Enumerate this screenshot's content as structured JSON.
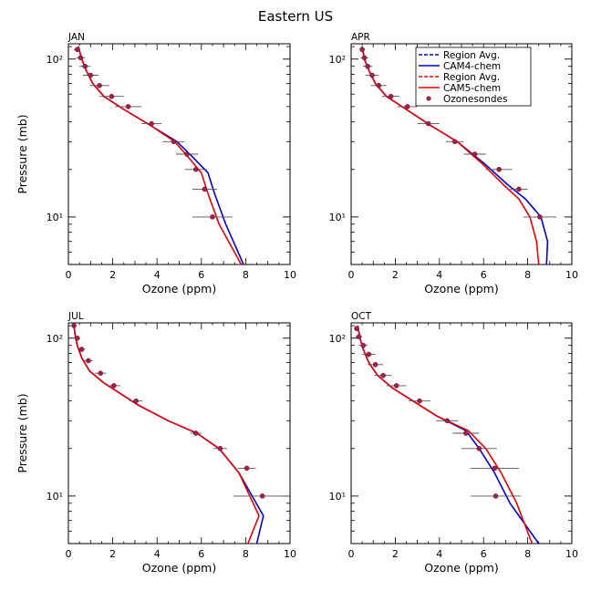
{
  "figure_title": "Eastern US",
  "colors": {
    "cam4": "#0000dd",
    "cam5": "#ee0000",
    "sonde": "#a0204a",
    "errorbar": "#555555",
    "axis": "#000000"
  },
  "legend": {
    "items": [
      {
        "label": "Region Avg.",
        "style": "dashed",
        "color": "#0000dd"
      },
      {
        "label": "CAM4-chem",
        "style": "solid",
        "color": "#0000dd"
      },
      {
        "label": "Region Avg.",
        "style": "dashed",
        "color": "#ee0000"
      },
      {
        "label": "CAM5-chem",
        "style": "solid",
        "color": "#ee0000"
      },
      {
        "label": "Ozonesondes",
        "style": "marker",
        "color": "#a0204a"
      }
    ]
  },
  "chart_data": [
    {
      "type": "line",
      "panel": "JAN",
      "xlabel": "Ozone (ppm)",
      "ylabel": "Pressure (mb)",
      "xlim": [
        0,
        10
      ],
      "ylim": [
        125,
        5
      ],
      "yscale": "log",
      "xticks": [
        0,
        2,
        4,
        6,
        8,
        10
      ],
      "yticks": [
        {
          "value": 10,
          "label": "10¹"
        },
        {
          "value": 100,
          "label": "10²"
        }
      ],
      "series": [
        {
          "name": "CAM4-chem",
          "color": "#0000dd",
          "x": [
            0.45,
            0.6,
            0.8,
            1.1,
            1.6,
            2.5,
            3.7,
            4.9,
            5.6,
            6.3,
            6.6,
            7.1,
            7.9
          ],
          "y": [
            120,
            100,
            85,
            70,
            58,
            48,
            38,
            30,
            24,
            19,
            14,
            9,
            5
          ]
        },
        {
          "name": "CAM5-chem",
          "color": "#ee0000",
          "x": [
            0.45,
            0.6,
            0.8,
            1.1,
            1.6,
            2.5,
            3.7,
            4.8,
            5.4,
            6.0,
            6.3,
            6.8,
            7.8
          ],
          "y": [
            120,
            100,
            85,
            70,
            58,
            48,
            38,
            30,
            24,
            19,
            14,
            9,
            5
          ]
        },
        {
          "name": "Ozonesondes",
          "type": "scatter",
          "color": "#a0204a",
          "x": [
            0.4,
            0.55,
            0.75,
            1.0,
            1.4,
            1.95,
            2.7,
            3.75,
            4.75,
            5.35,
            5.75,
            6.15,
            6.5
          ],
          "y": [
            115,
            102,
            90,
            79,
            68,
            58,
            50,
            39,
            30,
            25,
            20,
            15,
            10
          ],
          "xerr": [
            0.15,
            0.2,
            0.25,
            0.35,
            0.45,
            0.55,
            0.6,
            0.45,
            0.5,
            0.5,
            0.5,
            0.55,
            0.9
          ]
        }
      ]
    },
    {
      "type": "line",
      "panel": "APR",
      "xlabel": "Ozone (ppm)",
      "ylabel": "",
      "xlim": [
        0,
        10
      ],
      "ylim": [
        125,
        5
      ],
      "yscale": "log",
      "xticks": [
        0,
        2,
        4,
        6,
        8,
        10
      ],
      "yticks": [
        {
          "value": 10,
          "label": "10¹"
        },
        {
          "value": 100,
          "label": "10²"
        }
      ],
      "series": [
        {
          "name": "CAM4-chem",
          "color": "#0000dd",
          "x": [
            0.5,
            0.6,
            0.8,
            1.1,
            1.6,
            2.5,
            3.6,
            4.8,
            6.0,
            7.1,
            7.9,
            8.6,
            8.9,
            8.85
          ],
          "y": [
            120,
            100,
            85,
            70,
            58,
            48,
            38,
            30,
            22,
            16,
            13,
            10,
            7,
            5
          ]
        },
        {
          "name": "CAM5-chem",
          "color": "#ee0000",
          "x": [
            0.5,
            0.6,
            0.8,
            1.1,
            1.6,
            2.5,
            3.6,
            4.8,
            5.9,
            6.9,
            7.6,
            8.1,
            8.4,
            8.5
          ],
          "y": [
            120,
            100,
            85,
            70,
            58,
            48,
            38,
            30,
            22,
            16,
            13,
            10,
            7,
            5
          ]
        },
        {
          "name": "Ozonesondes",
          "type": "scatter",
          "color": "#a0204a",
          "x": [
            0.5,
            0.6,
            0.75,
            0.95,
            1.25,
            1.8,
            2.55,
            3.5,
            4.7,
            5.6,
            6.7,
            7.6,
            8.55
          ],
          "y": [
            115,
            102,
            90,
            79,
            68,
            58,
            50,
            39,
            30,
            25,
            20,
            15,
            10
          ],
          "xerr": [
            0.12,
            0.18,
            0.22,
            0.3,
            0.35,
            0.4,
            0.45,
            0.5,
            0.4,
            0.5,
            0.6,
            0.4,
            0.75
          ]
        }
      ]
    },
    {
      "type": "line",
      "panel": "JUL",
      "xlabel": "Ozone (ppm)",
      "ylabel": "Pressure (mb)",
      "xlim": [
        0,
        10
      ],
      "ylim": [
        125,
        5
      ],
      "yscale": "log",
      "xticks": [
        0,
        2,
        4,
        6,
        8,
        10
      ],
      "yticks": [
        {
          "value": 10,
          "label": "10¹"
        },
        {
          "value": 100,
          "label": "10²"
        }
      ],
      "series": [
        {
          "name": "CAM4-chem",
          "color": "#0000dd",
          "x": [
            0.25,
            0.3,
            0.4,
            0.6,
            0.95,
            1.6,
            2.3,
            3.1,
            4.5,
            5.8,
            6.8,
            7.7,
            8.8,
            8.5
          ],
          "y": [
            120,
            105,
            90,
            75,
            62,
            52,
            45,
            38,
            30,
            25,
            20,
            14,
            7.5,
            5
          ]
        },
        {
          "name": "CAM5-chem",
          "color": "#ee0000",
          "x": [
            0.25,
            0.3,
            0.4,
            0.6,
            0.95,
            1.6,
            2.3,
            3.1,
            4.5,
            5.8,
            6.8,
            7.7,
            8.6,
            8.1
          ],
          "y": [
            120,
            105,
            90,
            75,
            62,
            52,
            45,
            38,
            30,
            25,
            20,
            14,
            7.5,
            5
          ]
        },
        {
          "name": "Ozonesondes",
          "type": "scatter",
          "color": "#a0204a",
          "x": [
            0.25,
            0.4,
            0.6,
            0.9,
            1.45,
            2.05,
            3.05,
            5.75,
            6.85,
            8.05,
            8.75
          ],
          "y": [
            120,
            100,
            85,
            72,
            60,
            50,
            40,
            25,
            20,
            15,
            10
          ],
          "xerr": [
            0.08,
            0.12,
            0.15,
            0.2,
            0.25,
            0.3,
            0.3,
            0.25,
            0.3,
            0.4,
            1.3
          ]
        }
      ]
    },
    {
      "type": "line",
      "panel": "OCT",
      "xlabel": "Ozone (ppm)",
      "ylabel": "",
      "xlim": [
        0,
        10
      ],
      "ylim": [
        125,
        5
      ],
      "yscale": "log",
      "xticks": [
        0,
        2,
        4,
        6,
        8,
        10
      ],
      "yticks": [
        {
          "value": 10,
          "label": "10¹"
        },
        {
          "value": 100,
          "label": "10²"
        }
      ],
      "series": [
        {
          "name": "CAM4-chem",
          "color": "#0000dd",
          "x": [
            0.3,
            0.4,
            0.55,
            0.8,
            1.2,
            1.9,
            2.8,
            3.9,
            5.2,
            5.8,
            6.5,
            7.2,
            8.5
          ],
          "y": [
            120,
            100,
            85,
            70,
            58,
            48,
            40,
            32,
            26,
            20,
            14,
            9,
            5
          ]
        },
        {
          "name": "CAM5-chem",
          "color": "#ee0000",
          "x": [
            0.3,
            0.4,
            0.55,
            0.8,
            1.2,
            1.9,
            2.8,
            3.9,
            5.3,
            6.1,
            6.8,
            7.5,
            8.2
          ],
          "y": [
            120,
            100,
            85,
            70,
            58,
            48,
            40,
            32,
            26,
            20,
            14,
            9,
            5
          ]
        },
        {
          "name": "Ozonesondes",
          "type": "scatter",
          "color": "#a0204a",
          "x": [
            0.25,
            0.35,
            0.55,
            0.8,
            1.1,
            1.45,
            2.05,
            3.1,
            4.35,
            5.2,
            5.8,
            6.5,
            6.55
          ],
          "y": [
            115,
            102,
            90,
            79,
            68,
            58,
            50,
            40,
            30,
            25,
            20,
            15,
            10
          ],
          "xerr": [
            0.1,
            0.15,
            0.2,
            0.3,
            0.35,
            0.4,
            0.45,
            0.5,
            0.5,
            0.6,
            0.8,
            1.1,
            1.15
          ]
        }
      ]
    }
  ]
}
